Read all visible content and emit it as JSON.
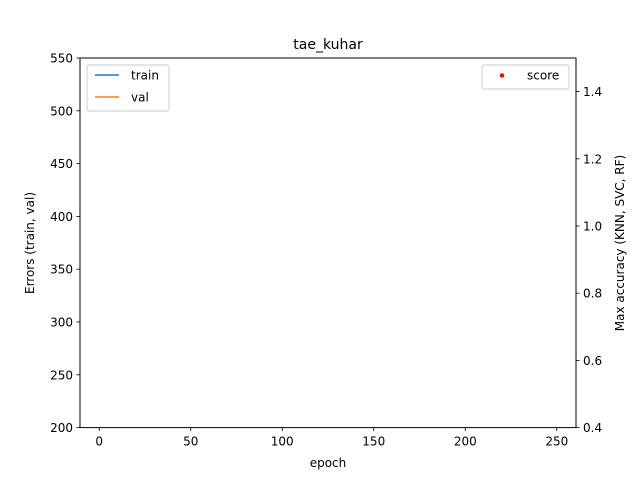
{
  "chart_data": {
    "type": "line",
    "title": "tae_kuhar",
    "xlabel": "epoch",
    "ylabel": "Errors (train, val)",
    "y2label": "Max accuracy (KNN, SVC, RF)",
    "xlim": [
      -10.5,
      260.5
    ],
    "ylim": [
      200,
      550
    ],
    "y2lim": [
      0.4,
      1.5
    ],
    "xticks": [
      0,
      50,
      100,
      150,
      200,
      250
    ],
    "yticks": [
      200,
      250,
      300,
      350,
      400,
      450,
      500,
      550
    ],
    "y2ticks": [
      0.4,
      0.6,
      0.8,
      1.0,
      1.2,
      1.4
    ],
    "y2tick_labels": [
      "0.4",
      "0.6",
      "0.8",
      "1.0",
      "1.2",
      "1.4"
    ],
    "grid": false,
    "series": [
      {
        "name": "train",
        "axis": "left",
        "color": "#1f77b4",
        "x": [],
        "values": []
      },
      {
        "name": "val",
        "axis": "left",
        "color": "#ff7f0e",
        "x": [],
        "values": []
      }
    ],
    "score_series": {
      "name": "score",
      "axis": "right",
      "color": "#ff0000",
      "x": [],
      "values": []
    },
    "legend_left": {
      "placement": "top-left",
      "entries": [
        "train",
        "val"
      ]
    },
    "legend_right": {
      "placement": "top-right",
      "entries": [
        "score"
      ]
    }
  }
}
